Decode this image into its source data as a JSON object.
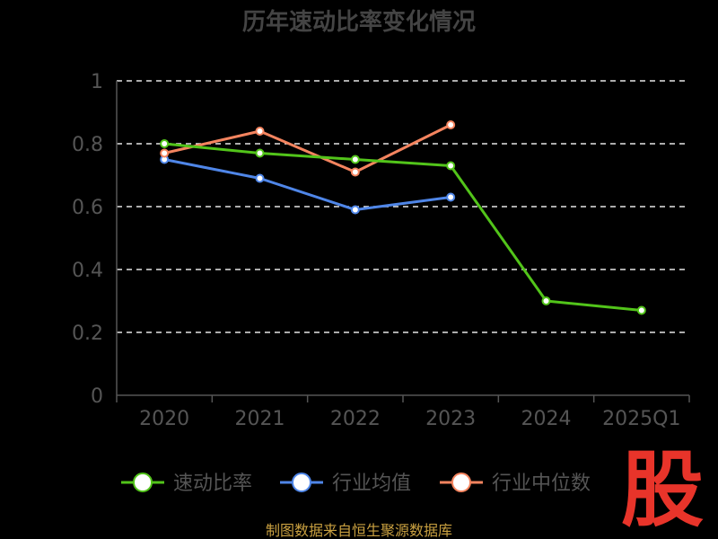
{
  "chart_data": {
    "type": "line",
    "title": "历年速动比率变化情况",
    "categories": [
      "2020",
      "2021",
      "2022",
      "2023",
      "2024",
      "2025Q1"
    ],
    "y_ticks": [
      "0",
      "0.2",
      "0.4",
      "0.6",
      "0.8",
      "1"
    ],
    "ylim": [
      0,
      1
    ],
    "xlabel": "",
    "ylabel": "",
    "grid": true,
    "legend_position": "bottom",
    "series": [
      {
        "name": "速动比率",
        "color": "#52c41a",
        "values": [
          0.8,
          0.77,
          0.75,
          0.73,
          0.3,
          0.27
        ]
      },
      {
        "name": "行业均值",
        "color": "#4f86e8",
        "values": [
          0.75,
          0.69,
          0.59,
          0.63,
          null,
          null
        ]
      },
      {
        "name": "行业中位数",
        "color": "#f4845f",
        "values": [
          0.77,
          0.84,
          0.71,
          0.86,
          null,
          null
        ]
      }
    ]
  },
  "source_text": "制图数据来自恒生聚源数据库",
  "logo_text": "股"
}
